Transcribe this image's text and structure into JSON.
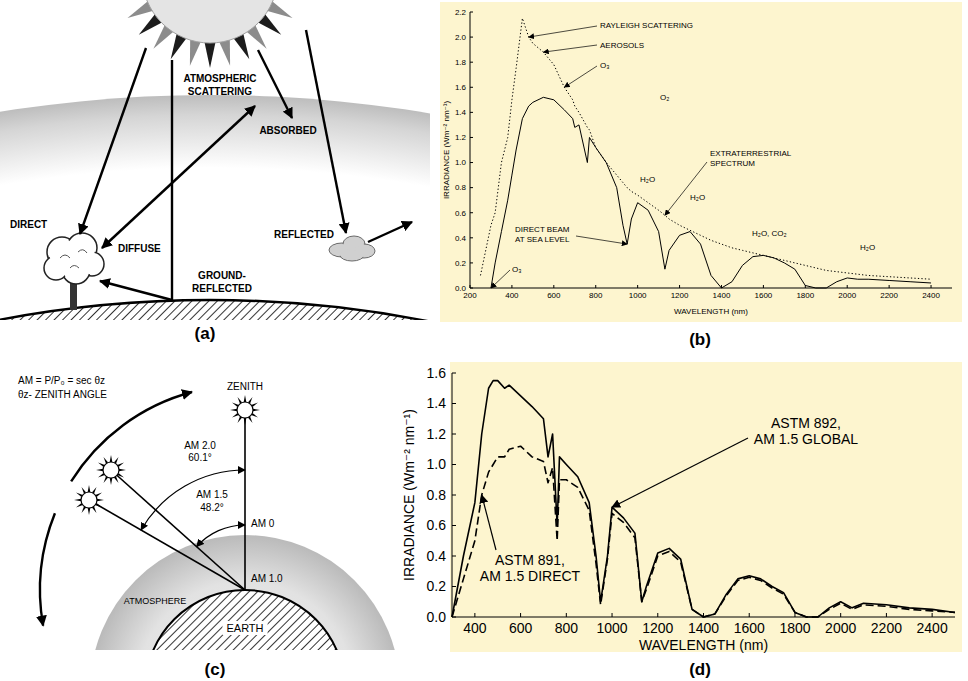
{
  "panel_labels": {
    "a": "(a)",
    "b": "(b)",
    "c": "(c)",
    "d": "(d)"
  },
  "diagram_a": {
    "labels": {
      "atmospheric_scattering": "ATMOSPHERIC SCATTERING",
      "absorbed": "ABSORBED",
      "direct": "DIRECT",
      "diffuse": "DIFFUSE",
      "reflected": "REFLECTED",
      "ground_reflected": "GROUND-REFLECTED"
    }
  },
  "diagram_c": {
    "formula": "AM = P/P₀ = sec θz",
    "definition": "θz- ZENITH ANGLE",
    "labels": {
      "zenith": "ZENITH",
      "am_2": "AM 2.0",
      "angle_2": "60.1°",
      "am_15": "AM 1.5",
      "angle_15": "48.2°",
      "am_0": "AM 0",
      "am_1": "AM 1.0",
      "atmosphere": "ATMOSPHERE",
      "earth": "EARTH"
    }
  },
  "chart_data": [
    {
      "type": "line",
      "x_label": "WAVELENGTH (nm)",
      "y_label": "IRRADIANCE (Wm⁻² nm⁻¹)",
      "x": [
        250,
        300,
        320,
        350,
        380,
        400,
        420,
        450,
        480,
        500,
        550,
        600,
        650,
        690,
        700,
        720,
        760,
        770,
        800,
        850,
        900,
        930,
        950,
        970,
        1000,
        1050,
        1100,
        1130,
        1150,
        1200,
        1250,
        1300,
        1350,
        1400,
        1450,
        1500,
        1550,
        1600,
        1650,
        1700,
        1750,
        1800,
        1850,
        1900,
        1950,
        2000,
        2050,
        2100,
        2200,
        2300,
        2400
      ],
      "series": [
        {
          "name": "EXTRATERRESTRIAL SPECTRUM",
          "color": "#000000",
          "line_style": "dotted",
          "values": [
            0.1,
            0.5,
            0.6,
            1.0,
            1.2,
            1.5,
            1.75,
            2.15,
            2.0,
            1.95,
            1.88,
            1.78,
            1.6,
            1.5,
            1.45,
            1.4,
            1.28,
            1.26,
            1.12,
            1.0,
            0.9,
            0.84,
            0.8,
            0.77,
            0.74,
            0.68,
            0.62,
            0.58,
            0.55,
            0.5,
            0.46,
            0.42,
            0.38,
            0.35,
            0.32,
            0.3,
            0.28,
            0.26,
            0.24,
            0.22,
            0.2,
            0.18,
            0.16,
            0.14,
            0.13,
            0.12,
            0.11,
            0.1,
            0.09,
            0.08,
            0.07
          ]
        },
        {
          "name": "DIRECT BEAM AT SEA LEVEL",
          "color": "#000000",
          "line_style": "solid",
          "values": [
            null,
            0,
            0.2,
            0.45,
            0.7,
            0.9,
            1.1,
            1.35,
            1.45,
            1.48,
            1.52,
            1.5,
            1.42,
            1.35,
            1.28,
            1.3,
            1.0,
            1.2,
            1.12,
            1.0,
            0.8,
            0.5,
            0.35,
            0.55,
            0.68,
            0.62,
            0.45,
            0.15,
            0.3,
            0.42,
            0.45,
            0.35,
            0.1,
            0,
            0.05,
            0.18,
            0.25,
            0.26,
            0.24,
            0.2,
            0.15,
            0.02,
            0,
            0,
            0.05,
            0.08,
            0.07,
            0.07,
            0.06,
            0.05,
            0.04
          ]
        }
      ],
      "xlim": [
        200,
        2500
      ],
      "ylim": [
        0,
        2.2
      ],
      "xticks": [
        200,
        400,
        600,
        800,
        1000,
        1200,
        1400,
        1600,
        1800,
        2000,
        2200,
        2400
      ],
      "yticks": [
        {
          "value": 0,
          "label": "0.0"
        },
        0.2,
        0.4,
        0.6,
        0.8,
        {
          "value": 1,
          "label": "1.0"
        },
        1.2,
        1.4,
        1.6,
        1.8,
        {
          "value": 2,
          "label": "2.0"
        },
        2.2
      ],
      "annotations": [
        "RAYLEIGH SCATTERING",
        "AEROSOLS",
        "O₃",
        "O₂",
        "H₂O",
        "H₂O",
        "H₂O, CO₂",
        "H₂O",
        "O₃"
      ]
    },
    {
      "type": "line",
      "x_label": "WAVELENGTH (nm)",
      "y_label": "IRRADIANCE (Wm⁻² nm⁻¹)",
      "x": [
        300,
        350,
        400,
        430,
        460,
        480,
        500,
        530,
        550,
        600,
        650,
        700,
        720,
        740,
        760,
        770,
        800,
        850,
        900,
        930,
        950,
        980,
        1000,
        1050,
        1100,
        1130,
        1150,
        1200,
        1250,
        1300,
        1350,
        1400,
        1450,
        1500,
        1550,
        1600,
        1650,
        1700,
        1750,
        1800,
        1850,
        1900,
        1950,
        2000,
        2050,
        2100,
        2200,
        2300,
        2400,
        2500
      ],
      "series": [
        {
          "name": "ASTM 892, AM 1.5 GLOBAL",
          "color": "#000000",
          "line_style": "solid",
          "values": [
            0,
            0.4,
            0.75,
            1.2,
            1.5,
            1.55,
            1.55,
            1.5,
            1.52,
            1.45,
            1.38,
            1.3,
            1.05,
            1.2,
            0.6,
            1.05,
            1.0,
            0.92,
            0.75,
            0.4,
            0.1,
            0.4,
            0.72,
            0.65,
            0.55,
            0.1,
            0.2,
            0.42,
            0.45,
            0.38,
            0.05,
            0,
            0.02,
            0.15,
            0.25,
            0.27,
            0.25,
            0.2,
            0.16,
            0.03,
            0,
            0,
            0.06,
            0.1,
            0.06,
            0.09,
            0.08,
            0.06,
            0.05,
            0.03
          ]
        },
        {
          "name": "ASTM 891, AM 1.5 DIRECT",
          "color": "#000000",
          "line_style": "dashed",
          "values": [
            0,
            0.25,
            0.5,
            0.8,
            0.95,
            1.0,
            1.05,
            1.05,
            1.1,
            1.12,
            1.05,
            1.02,
            0.88,
            0.98,
            0.5,
            0.9,
            0.9,
            0.85,
            0.7,
            0.35,
            0.08,
            0.38,
            0.68,
            0.62,
            0.52,
            0.1,
            0.18,
            0.4,
            0.43,
            0.36,
            0.05,
            0,
            0.02,
            0.14,
            0.24,
            0.26,
            0.24,
            0.19,
            0.15,
            0.03,
            0,
            0,
            0.05,
            0.09,
            0.05,
            0.08,
            0.07,
            0.05,
            0.04,
            0.03
          ]
        }
      ],
      "xlim": [
        300,
        2500
      ],
      "ylim": [
        0,
        1.6
      ],
      "xticks": [
        400,
        600,
        800,
        1000,
        1200,
        1400,
        1600,
        1800,
        2000,
        2200,
        2400
      ],
      "yticks": [
        {
          "value": 0,
          "label": "0.0"
        },
        0.2,
        0.4,
        0.6,
        0.8,
        {
          "value": 1,
          "label": "1.0"
        },
        1.2,
        1.4,
        1.6
      ]
    }
  ]
}
